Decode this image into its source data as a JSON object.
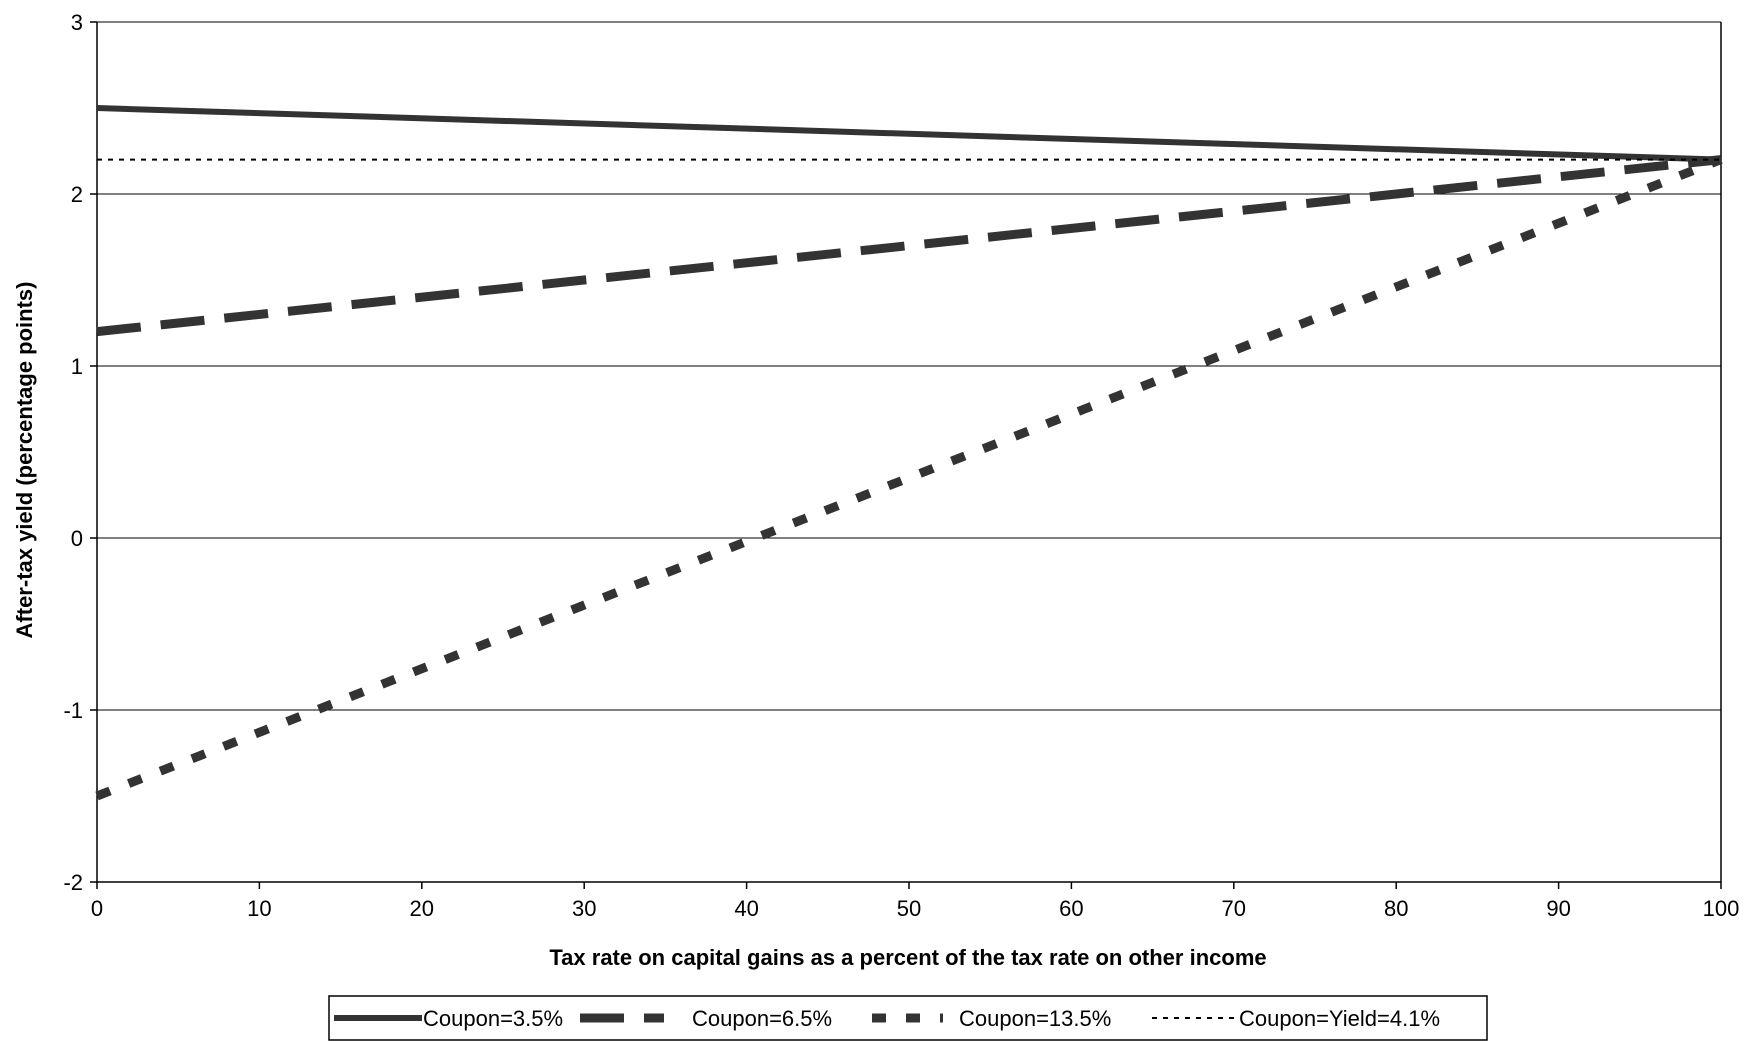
{
  "chart_data": {
    "type": "line",
    "title": "",
    "xlabel": "Tax rate on capital gains as a percent of the tax rate on other income",
    "ylabel": "After-tax yield (percentage points)",
    "xlim": [
      0,
      100
    ],
    "ylim": [
      -2,
      3
    ],
    "xticks": [
      0,
      10,
      20,
      30,
      40,
      50,
      60,
      70,
      80,
      90,
      100
    ],
    "yticks": [
      -2,
      -1,
      0,
      1,
      2,
      3
    ],
    "x_tick_labels": [
      "0",
      "10",
      "20",
      "30",
      "40",
      "50",
      "60",
      "70",
      "80",
      "90",
      "100"
    ],
    "y_tick_labels": [
      "-2",
      "-1",
      "0",
      "1",
      "2",
      "3"
    ],
    "grid": "horizontal",
    "legend_position": "bottom",
    "series": [
      {
        "name": "Coupon=3.5%",
        "x": [
          0,
          100
        ],
        "y": [
          2.5,
          2.2
        ],
        "style": "solid",
        "color": "#333333"
      },
      {
        "name": "Coupon=6.5%",
        "x": [
          0,
          100
        ],
        "y": [
          1.2,
          2.2
        ],
        "style": "long-dash",
        "color": "#333333"
      },
      {
        "name": "Coupon=13.5%",
        "x": [
          0,
          100
        ],
        "y": [
          -1.5,
          2.2
        ],
        "style": "short-dash",
        "color": "#333333"
      },
      {
        "name": "Coupon=Yield=4.1%",
        "x": [
          0,
          100
        ],
        "y": [
          2.2,
          2.2
        ],
        "style": "dotted",
        "color": "#000000"
      }
    ]
  }
}
